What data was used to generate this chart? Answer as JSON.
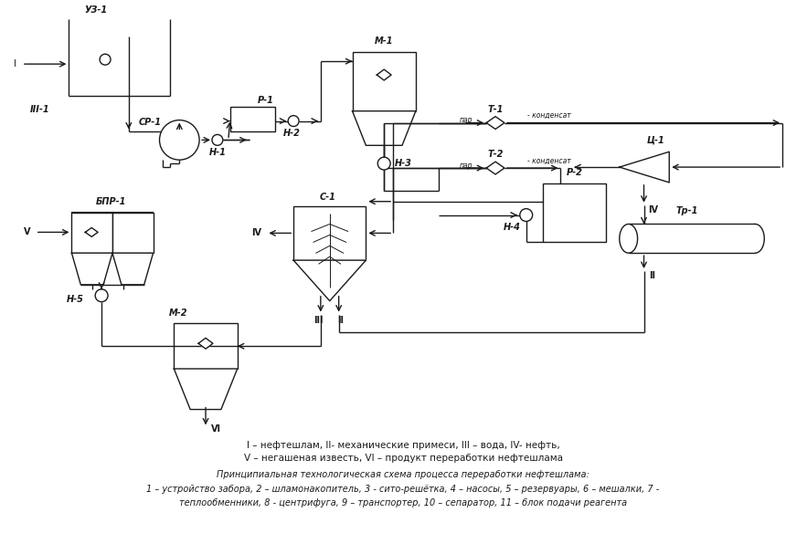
{
  "fig_width": 8.83,
  "fig_height": 5.96,
  "bg_color": "#ffffff",
  "line_color": "#1a1a1a",
  "lw": 1.0,
  "tlw": 0.7,
  "fs": 7.0,
  "legend_line1": "I – нефтешлам, II- механические примеси, III – вода, IV- нефть,",
  "legend_line2": "V – негашеная известь, VI – продукт переработки нефтешлама",
  "cap_title": "Принципиальная технологическая схема процесса переработки нефтешлама:",
  "cap_1": "1 – устройство забора, 2 – шламонакопитель, 3 - сито-решётка, 4 – насосы, 5 – резервуары, 6 – мешалки, 7 -",
  "cap_2": "теплообменники, 8 - центрифуга, 9 – транспортер, 10 – сепаратор, 11 – блок подачи реагента"
}
